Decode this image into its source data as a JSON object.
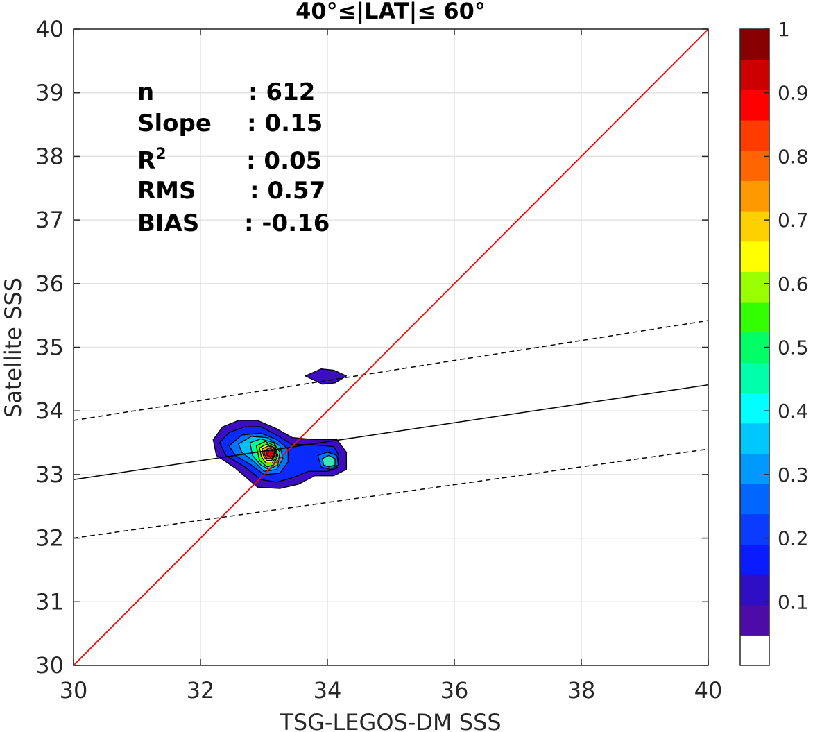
{
  "chart_data": {
    "type": "scatter",
    "title": "40°≤|LAT|≤ 60°",
    "xlabel": "TSG-LEGOS-DM SSS",
    "ylabel": "Satellite SSS",
    "xlim": [
      30,
      40
    ],
    "ylim": [
      30,
      40
    ],
    "xticks": [
      "30",
      "32",
      "34",
      "36",
      "38",
      "40"
    ],
    "yticks": [
      "30",
      "31",
      "32",
      "33",
      "34",
      "35",
      "36",
      "37",
      "38",
      "39",
      "40"
    ],
    "grid": true,
    "stats": [
      {
        "label": "n",
        "sep": ":",
        "value": "612"
      },
      {
        "label": "Slope",
        "sep": ":",
        "value": "0.15"
      },
      {
        "label": "R",
        "sup": "2",
        "sep": ":",
        "value": "0.05"
      },
      {
        "label": "RMS",
        "sep": ":",
        "value": "0.57"
      },
      {
        "label": "BIAS",
        "sep": ":",
        "value": "-0.16"
      }
    ],
    "identity_line": {
      "x": [
        30,
        40
      ],
      "y": [
        30,
        40
      ],
      "color": "#ff0000"
    },
    "fit_line": {
      "x": [
        30,
        40
      ],
      "y": [
        32.92,
        34.41
      ],
      "color": "#000000"
    },
    "fit_bounds": [
      {
        "x": [
          30,
          40
        ],
        "y": [
          33.85,
          35.42
        ]
      },
      {
        "x": [
          30,
          40
        ],
        "y": [
          32.0,
          33.4
        ]
      }
    ],
    "density_contours": [
      {
        "level": 0.05,
        "color": "#3b0fbf",
        "points": [
          [
            32.2,
            33.55
          ],
          [
            32.35,
            33.75
          ],
          [
            32.6,
            33.85
          ],
          [
            32.9,
            33.85
          ],
          [
            33.2,
            33.72
          ],
          [
            33.45,
            33.58
          ],
          [
            33.8,
            33.55
          ],
          [
            34.15,
            33.55
          ],
          [
            34.3,
            33.35
          ],
          [
            34.3,
            33.08
          ],
          [
            34.1,
            32.98
          ],
          [
            33.8,
            32.98
          ],
          [
            33.55,
            32.85
          ],
          [
            33.25,
            32.78
          ],
          [
            32.9,
            32.8
          ],
          [
            32.55,
            33.1
          ],
          [
            32.25,
            33.3
          ]
        ]
      },
      {
        "level": 0.05,
        "color": "#3b0fbf",
        "points": [
          [
            33.65,
            34.55
          ],
          [
            33.9,
            34.66
          ],
          [
            34.1,
            34.64
          ],
          [
            34.3,
            34.55
          ],
          [
            34.12,
            34.44
          ],
          [
            33.92,
            34.42
          ]
        ]
      },
      {
        "level": 0.15,
        "color": "#0a2bff",
        "points": [
          [
            32.3,
            33.5
          ],
          [
            32.45,
            33.66
          ],
          [
            32.7,
            33.75
          ],
          [
            32.95,
            33.75
          ],
          [
            33.2,
            33.62
          ],
          [
            33.45,
            33.47
          ],
          [
            33.75,
            33.47
          ],
          [
            34.1,
            33.44
          ],
          [
            34.18,
            33.3
          ],
          [
            34.15,
            33.1
          ],
          [
            34.0,
            33.05
          ],
          [
            33.7,
            33.05
          ],
          [
            33.45,
            32.95
          ],
          [
            33.2,
            32.88
          ],
          [
            32.95,
            32.92
          ],
          [
            32.7,
            33.12
          ],
          [
            32.4,
            33.3
          ]
        ]
      },
      {
        "level": 0.25,
        "color": "#0073ff",
        "points": [
          [
            32.45,
            33.45
          ],
          [
            32.65,
            33.62
          ],
          [
            32.95,
            33.65
          ],
          [
            33.2,
            33.55
          ],
          [
            33.38,
            33.4
          ],
          [
            33.38,
            33.2
          ],
          [
            33.25,
            33.02
          ],
          [
            33.0,
            33.0
          ],
          [
            32.8,
            33.15
          ],
          [
            32.55,
            33.3
          ]
        ]
      },
      {
        "level": 0.35,
        "color": "#00bfff",
        "points": [
          [
            32.6,
            33.48
          ],
          [
            32.8,
            33.6
          ],
          [
            33.05,
            33.58
          ],
          [
            33.25,
            33.45
          ],
          [
            33.3,
            33.25
          ],
          [
            33.2,
            33.08
          ],
          [
            33.0,
            33.05
          ],
          [
            32.85,
            33.2
          ],
          [
            32.65,
            33.35
          ]
        ]
      },
      {
        "level": 0.45,
        "color": "#00ff99",
        "points": [
          [
            32.78,
            33.5
          ],
          [
            32.95,
            33.56
          ],
          [
            33.15,
            33.5
          ],
          [
            33.25,
            33.35
          ],
          [
            33.22,
            33.15
          ],
          [
            33.08,
            33.08
          ],
          [
            32.95,
            33.15
          ],
          [
            32.82,
            33.3
          ]
        ]
      },
      {
        "level": 0.5,
        "color": "#4dff00",
        "points": [
          [
            32.88,
            33.45
          ],
          [
            33.02,
            33.52
          ],
          [
            33.17,
            33.45
          ],
          [
            33.22,
            33.3
          ],
          [
            33.15,
            33.15
          ],
          [
            33.05,
            33.12
          ],
          [
            32.93,
            33.22
          ]
        ]
      },
      {
        "level": 0.6,
        "color": "#ffff00",
        "points": [
          [
            32.93,
            33.42
          ],
          [
            33.05,
            33.48
          ],
          [
            33.17,
            33.42
          ],
          [
            33.2,
            33.3
          ],
          [
            33.13,
            33.18
          ],
          [
            33.03,
            33.18
          ],
          [
            32.96,
            33.28
          ]
        ]
      },
      {
        "level": 0.7,
        "color": "#ffaa00",
        "points": [
          [
            32.97,
            33.4
          ],
          [
            33.07,
            33.45
          ],
          [
            33.17,
            33.4
          ],
          [
            33.18,
            33.3
          ],
          [
            33.12,
            33.22
          ],
          [
            33.04,
            33.22
          ],
          [
            32.99,
            33.3
          ]
        ]
      },
      {
        "level": 0.85,
        "color": "#ff3c00",
        "points": [
          [
            33.0,
            33.37
          ],
          [
            33.09,
            33.42
          ],
          [
            33.17,
            33.37
          ],
          [
            33.17,
            33.3
          ],
          [
            33.12,
            33.25
          ],
          [
            33.05,
            33.25
          ],
          [
            33.01,
            33.31
          ]
        ]
      },
      {
        "level": 0.95,
        "color": "#d40000",
        "points": [
          [
            33.04,
            33.35
          ],
          [
            33.11,
            33.39
          ],
          [
            33.16,
            33.35
          ],
          [
            33.15,
            33.29
          ],
          [
            33.1,
            33.27
          ],
          [
            33.05,
            33.3
          ]
        ]
      },
      {
        "level": 0.25,
        "color": "#0073ff",
        "points": [
          [
            33.85,
            33.3
          ],
          [
            34.0,
            33.35
          ],
          [
            34.15,
            33.3
          ],
          [
            34.17,
            33.15
          ],
          [
            34.05,
            33.08
          ],
          [
            33.9,
            33.12
          ]
        ]
      },
      {
        "level": 0.4,
        "color": "#33e6b3",
        "points": [
          [
            33.92,
            33.25
          ],
          [
            34.02,
            33.3
          ],
          [
            34.12,
            33.25
          ],
          [
            34.12,
            33.15
          ],
          [
            34.02,
            33.12
          ],
          [
            33.94,
            33.15
          ]
        ]
      }
    ],
    "colorbar": {
      "range": [
        0,
        1
      ],
      "ticks": [
        "0.1",
        "0.2",
        "0.3",
        "0.4",
        "0.5",
        "0.6",
        "0.7",
        "0.8",
        "0.9",
        "1"
      ],
      "colors": [
        "#ffffff",
        "#4d0ba8",
        "#2e0fc4",
        "#0a1cff",
        "#0a3cff",
        "#0066ff",
        "#0099ff",
        "#00c8ff",
        "#00ffff",
        "#00ffaa",
        "#00ff66",
        "#33ff00",
        "#99ff00",
        "#ffff00",
        "#ffd000",
        "#ff9900",
        "#ff6600",
        "#ff3c00",
        "#ff0000",
        "#cc0000",
        "#880000"
      ]
    }
  }
}
